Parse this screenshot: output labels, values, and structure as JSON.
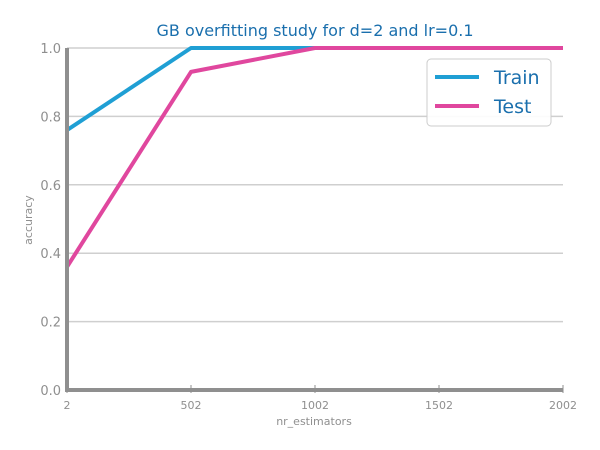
{
  "chart_data": {
    "type": "line",
    "title": "GB overfitting study for d=2 and lr=0.1",
    "xlabel": "nr_estimators",
    "ylabel": "accuracy",
    "x": [
      2,
      502,
      1002,
      1502,
      2002
    ],
    "xticks": [
      "2",
      "502",
      "1002",
      "1502",
      "2002"
    ],
    "yticks": [
      "0.0",
      "0.2",
      "0.4",
      "0.6",
      "0.8",
      "1.0"
    ],
    "xlim": [
      2,
      2002
    ],
    "ylim": [
      0,
      1
    ],
    "grid": "horizontal",
    "legend_position": "top-right",
    "series": [
      {
        "name": "Train",
        "color": "#1f9fd4",
        "values": [
          0.76,
          1.0,
          1.0,
          1.0,
          1.0
        ]
      },
      {
        "name": "Test",
        "color": "#e0479e",
        "values": [
          0.36,
          0.93,
          1.0,
          1.0,
          1.0
        ]
      }
    ]
  }
}
